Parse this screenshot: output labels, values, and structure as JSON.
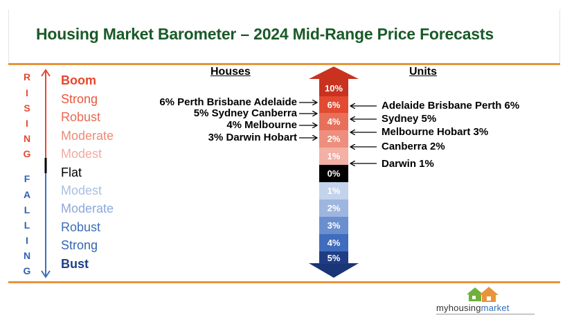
{
  "title": "Housing Market Barometer – 2024 Mid-Range Price Forecasts",
  "rising_letters": [
    "R",
    "I",
    "S",
    "I",
    "N",
    "G"
  ],
  "falling_letters": [
    "F",
    "A",
    "L",
    "L",
    "I",
    "N",
    "G"
  ],
  "scale": [
    {
      "label": "Boom",
      "color": "#e8462a",
      "bold": true
    },
    {
      "label": "Strong",
      "color": "#e8583e",
      "bold": false
    },
    {
      "label": "Robust",
      "color": "#e86a52",
      "bold": false
    },
    {
      "label": "Moderate",
      "color": "#ef8a78",
      "bold": false
    },
    {
      "label": "Modest",
      "color": "#f3aaa0",
      "bold": false
    },
    {
      "label": "Flat",
      "color": "#000000",
      "bold": false
    },
    {
      "label": "Modest",
      "color": "#a7bfe3",
      "bold": false
    },
    {
      "label": "Moderate",
      "color": "#8aa9db",
      "bold": false
    },
    {
      "label": "Robust",
      "color": "#3b6db5",
      "bold": false
    },
    {
      "label": "Strong",
      "color": "#3565b0",
      "bold": false
    },
    {
      "label": "Bust",
      "color": "#1f3f86",
      "bold": true
    }
  ],
  "headers": {
    "houses": "Houses",
    "units": "Units"
  },
  "segments": [
    {
      "label": "10%",
      "color": "#c8321f"
    },
    {
      "label": "6%",
      "color": "#e24a32"
    },
    {
      "label": "4%",
      "color": "#e8705a"
    },
    {
      "label": "2%",
      "color": "#ee8e7e"
    },
    {
      "label": "1%",
      "color": "#f3b0a5"
    },
    {
      "label": "0%",
      "color": "#000000"
    },
    {
      "label": "1%",
      "color": "#c3d3ec"
    },
    {
      "label": "2%",
      "color": "#9db6e0"
    },
    {
      "label": "3%",
      "color": "#6a8fcf"
    },
    {
      "label": "4%",
      "color": "#3f6cbc"
    },
    {
      "label": "5%",
      "color": "#1f3d84"
    }
  ],
  "houses_annotations": [
    "6% Perth Brisbane Adelaide",
    "5% Sydney Canberra",
    "4% Melbourne",
    "3% Darwin Hobart"
  ],
  "units_annotations": [
    "Adelaide Brisbane Perth 6%",
    "Sydney 5%",
    "Melbourne Hobart 3%",
    "Canberra 2%",
    "Darwin 1%"
  ],
  "logo": {
    "prefix": "myhousing",
    "suffix": "market"
  }
}
